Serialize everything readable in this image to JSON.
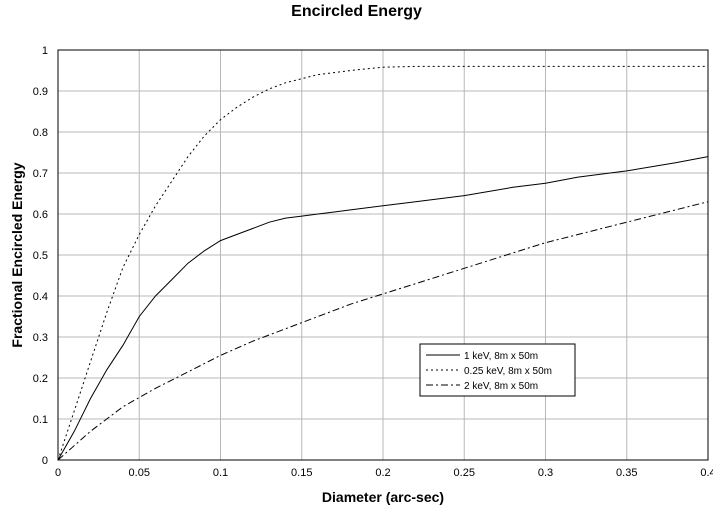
{
  "chart_data": {
    "type": "line",
    "title": "Encircled Energy",
    "xlabel": "Diameter (arc-sec)",
    "ylabel": "Fractional Encircled Energy",
    "xlim": [
      0,
      0.4
    ],
    "ylim": [
      0,
      1
    ],
    "x_ticks": [
      "0",
      "0.05",
      "0.1",
      "0.15",
      "0.2",
      "0.25",
      "0.3",
      "0.35",
      "0.4"
    ],
    "y_ticks": [
      "0",
      "0.1",
      "0.2",
      "0.3",
      "0.4",
      "0.5",
      "0.6",
      "0.7",
      "0.8",
      "0.9",
      "1"
    ],
    "grid": true,
    "legend_position": "lower-right",
    "series": [
      {
        "name": "1 keV, 8m x 50m",
        "style": "solid",
        "x": [
          0,
          0.01,
          0.02,
          0.03,
          0.04,
          0.05,
          0.06,
          0.07,
          0.08,
          0.09,
          0.1,
          0.11,
          0.12,
          0.13,
          0.14,
          0.15,
          0.16,
          0.17,
          0.18,
          0.2,
          0.22,
          0.25,
          0.28,
          0.3,
          0.32,
          0.35,
          0.38,
          0.4
        ],
        "y": [
          0,
          0.07,
          0.15,
          0.22,
          0.28,
          0.35,
          0.4,
          0.44,
          0.48,
          0.51,
          0.535,
          0.55,
          0.565,
          0.58,
          0.59,
          0.595,
          0.6,
          0.605,
          0.61,
          0.62,
          0.63,
          0.645,
          0.665,
          0.675,
          0.69,
          0.705,
          0.725,
          0.74
        ]
      },
      {
        "name": "0.25 keV, 8m x 50m",
        "style": "dotted",
        "x": [
          0,
          0.01,
          0.02,
          0.03,
          0.04,
          0.05,
          0.06,
          0.07,
          0.08,
          0.09,
          0.1,
          0.11,
          0.12,
          0.13,
          0.14,
          0.15,
          0.16,
          0.18,
          0.2,
          0.22,
          0.25,
          0.3,
          0.35,
          0.4
        ],
        "y": [
          0,
          0.12,
          0.24,
          0.36,
          0.47,
          0.55,
          0.62,
          0.68,
          0.74,
          0.79,
          0.83,
          0.86,
          0.885,
          0.905,
          0.92,
          0.93,
          0.94,
          0.95,
          0.958,
          0.96,
          0.96,
          0.96,
          0.96,
          0.96
        ]
      },
      {
        "name": "2 keV, 8m x 50m",
        "style": "dashdot",
        "x": [
          0,
          0.02,
          0.04,
          0.06,
          0.08,
          0.1,
          0.12,
          0.14,
          0.16,
          0.18,
          0.2,
          0.22,
          0.24,
          0.26,
          0.28,
          0.3,
          0.32,
          0.34,
          0.36,
          0.38,
          0.4
        ],
        "y": [
          0,
          0.07,
          0.13,
          0.175,
          0.215,
          0.255,
          0.29,
          0.32,
          0.35,
          0.38,
          0.405,
          0.43,
          0.455,
          0.48,
          0.505,
          0.53,
          0.55,
          0.57,
          0.59,
          0.61,
          0.63
        ]
      }
    ]
  }
}
